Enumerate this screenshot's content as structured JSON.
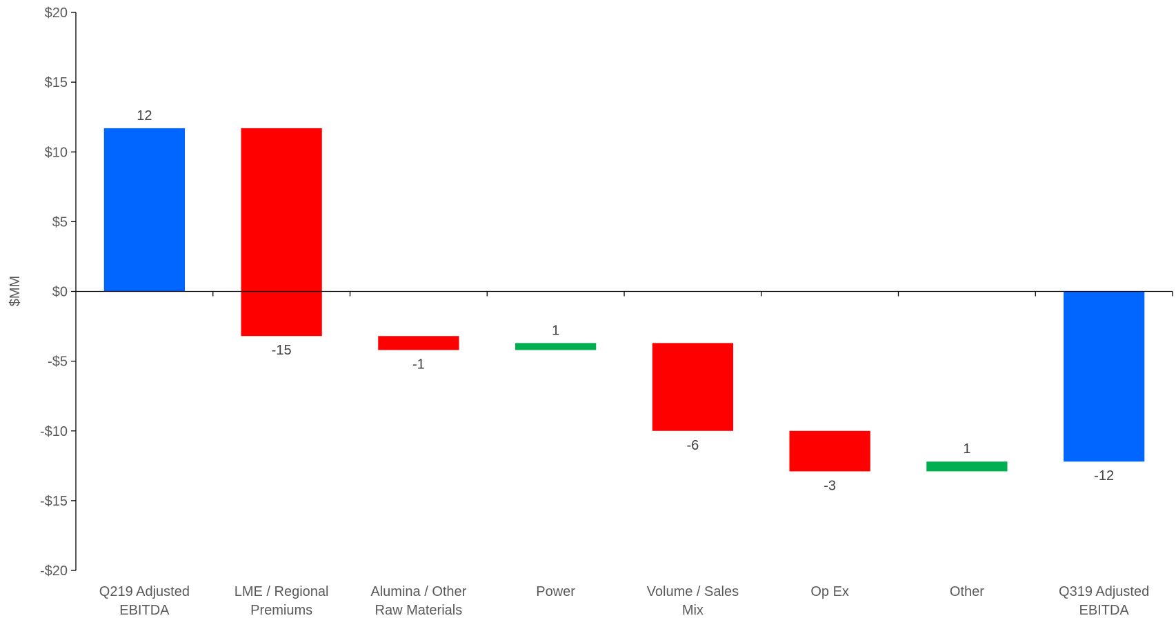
{
  "chart_data": {
    "type": "bar",
    "subtype": "waterfall",
    "ylabel": "$MM",
    "ylim": [
      -20,
      20
    ],
    "yticks": [
      20,
      15,
      10,
      5,
      0,
      -5,
      -10,
      -15,
      -20
    ],
    "ytick_labels": [
      "$20",
      "$15",
      "$10",
      "$5",
      "$0",
      "-$5",
      "-$10",
      "-$15",
      "-$20"
    ],
    "grid": false,
    "legend": "none",
    "colors": {
      "total": "#0066FF",
      "decrease": "#FF0000",
      "increase": "#00B050"
    },
    "bars": [
      {
        "category": [
          "Q219 Adjusted",
          "EBITDA"
        ],
        "kind": "total",
        "start": 0,
        "end": 11.7,
        "label": "12"
      },
      {
        "category": [
          "LME / Regional",
          "Premiums"
        ],
        "kind": "decrease",
        "start": 11.7,
        "end": -3.2,
        "label": "-15"
      },
      {
        "category": [
          "Alumina / Other",
          "Raw Materials"
        ],
        "kind": "decrease",
        "start": -3.2,
        "end": -4.2,
        "label": "-1"
      },
      {
        "category": [
          "Power"
        ],
        "kind": "increase",
        "start": -4.2,
        "end": -3.7,
        "label": "1"
      },
      {
        "category": [
          "Volume / Sales",
          "Mix"
        ],
        "kind": "decrease",
        "start": -3.7,
        "end": -10.0,
        "label": "-6"
      },
      {
        "category": [
          "Op Ex"
        ],
        "kind": "decrease",
        "start": -10.0,
        "end": -12.9,
        "label": "-3"
      },
      {
        "category": [
          "Other"
        ],
        "kind": "increase",
        "start": -12.9,
        "end": -12.2,
        "label": "1"
      },
      {
        "category": [
          "Q319 Adjusted",
          "EBITDA"
        ],
        "kind": "total",
        "start": 0,
        "end": -12.2,
        "label": "-12"
      }
    ]
  }
}
